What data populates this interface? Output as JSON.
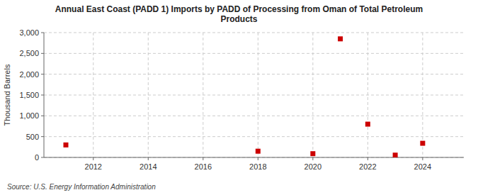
{
  "chart_data": {
    "type": "scatter",
    "title": "Annual East Coast (PADD 1) Imports by PADD of Processing from Oman of Total Petroleum\nProducts",
    "y_label": "Thousand Barrels",
    "annotations": [
      "Source: U.S. Energy Information Administration"
    ],
    "x": [
      2011,
      2018,
      2020,
      2021,
      2022,
      2023,
      2024
    ],
    "values": [
      300,
      150,
      90,
      2850,
      800,
      55,
      340
    ],
    "color": "#cc0000",
    "marker": "square",
    "xlim": [
      2010.2,
      2025.5
    ],
    "ylim": [
      0,
      3000
    ],
    "xticks": [
      2012,
      2014,
      2016,
      2018,
      2020,
      2022,
      2024
    ],
    "yticks": [
      0,
      500,
      {
        "value": 1000,
        "label": "1,000"
      },
      {
        "value": 1500,
        "label": "1,500"
      },
      {
        "value": 2000,
        "label": "2,000"
      },
      {
        "value": 2500,
        "label": "2,500"
      },
      {
        "value": 3000,
        "label": "3,000"
      }
    ],
    "grid": true
  }
}
